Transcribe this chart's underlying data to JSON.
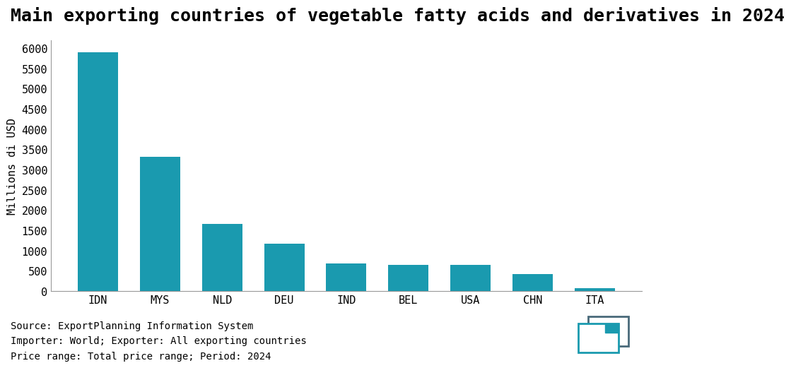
{
  "title": "Main exporting countries of vegetable fatty acids and derivatives in 2024",
  "categories": [
    "IDN",
    "MYS",
    "NLD",
    "DEU",
    "IND",
    "BEL",
    "USA",
    "CHN",
    "ITA"
  ],
  "values": [
    5900,
    3320,
    1670,
    1180,
    680,
    650,
    650,
    430,
    80
  ],
  "bar_color": "#1a9aaf",
  "ylabel": "Millions di USD",
  "ylim": [
    0,
    6200
  ],
  "yticks": [
    0,
    500,
    1000,
    1500,
    2000,
    2500,
    3000,
    3500,
    4000,
    4500,
    5000,
    5500,
    6000
  ],
  "background_color": "#ffffff",
  "footnote_lines": [
    "Source: ExportPlanning Information System",
    "Importer: World; Exporter: All exporting countries",
    "Price range: Total price range; Period: 2024"
  ],
  "title_fontsize": 18,
  "ylabel_fontsize": 11,
  "tick_fontsize": 11,
  "footnote_fontsize": 10,
  "icon_back_color": "#4a6a7a",
  "icon_front_color": "#1a9aaf"
}
